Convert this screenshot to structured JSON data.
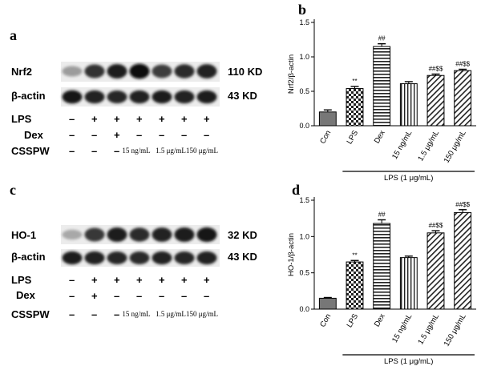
{
  "panels": {
    "a": {
      "letter": "a",
      "bands": [
        {
          "name": "Nrf2",
          "size": "110 KD",
          "intensity": [
            0.35,
            0.82,
            0.92,
            1.0,
            0.78,
            0.85,
            0.9
          ]
        },
        {
          "name": "β-actin",
          "size": "43 KD",
          "intensity": [
            0.95,
            0.9,
            0.88,
            0.9,
            0.92,
            0.9,
            0.92
          ]
        }
      ],
      "conditions": [
        {
          "label": "LPS",
          "marks": [
            "–",
            "+",
            "+",
            "+",
            "+",
            "+",
            "+"
          ]
        },
        {
          "label": "Dex",
          "marks": [
            "–",
            "–",
            "+",
            "–",
            "–",
            "–",
            "–"
          ]
        }
      ],
      "csspw": {
        "label": "CSSPW",
        "marks": [
          "–",
          "–",
          "–"
        ],
        "doses": [
          "15 ng/mL",
          "1.5 μg/mL",
          "150 μg/mL"
        ]
      }
    },
    "c": {
      "letter": "c",
      "bands": [
        {
          "name": "HO-1",
          "size": "32 KD",
          "intensity": [
            0.3,
            0.8,
            0.92,
            0.85,
            0.9,
            0.92,
            0.95
          ]
        },
        {
          "name": "β-actin",
          "size": "43 KD",
          "intensity": [
            0.92,
            0.9,
            0.88,
            0.86,
            0.9,
            0.88,
            0.9
          ]
        }
      ],
      "conditions": [
        {
          "label": "LPS",
          "marks": [
            "–",
            "+",
            "+",
            "+",
            "+",
            "+",
            "+"
          ]
        },
        {
          "label": "Dex",
          "marks": [
            "–",
            "+",
            "–",
            "–",
            "–",
            "–",
            "–"
          ]
        }
      ],
      "csspw": {
        "label": "CSSPW",
        "marks": [
          "–",
          "–",
          "–"
        ],
        "doses": [
          "15 ng/mL",
          "1.5 μg/mL",
          "150 μg/mL"
        ]
      }
    },
    "b": {
      "letter": "b"
    },
    "d": {
      "letter": "d"
    }
  },
  "chart_data": [
    {
      "type": "bar",
      "panel": "b",
      "ylabel": "Nrf2/β-actin",
      "ylim": [
        0,
        1.5
      ],
      "yticks": [
        "0.0",
        "0.5",
        "1.0",
        "1.5"
      ],
      "categories": [
        "Con",
        "LPS",
        "Dex",
        "15 ng/mL",
        "1.5 μg/mL",
        "150 μg/mL"
      ],
      "values": [
        0.2,
        0.54,
        1.15,
        0.61,
        0.73,
        0.8
      ],
      "errors": [
        0.03,
        0.03,
        0.04,
        0.03,
        0.02,
        0.02
      ],
      "annotations": [
        "",
        "**",
        "##",
        "",
        "##$$",
        "##$$"
      ],
      "patterns": [
        "solid",
        "checker",
        "hstripe",
        "vstripe",
        "diag",
        "diag"
      ],
      "group_label": "LPS (1 μg/mL)"
    },
    {
      "type": "bar",
      "panel": "d",
      "ylabel": "HO-1/β-actin",
      "ylim": [
        0,
        1.5
      ],
      "yticks": [
        "0.0",
        "0.5",
        "1.0",
        "1.5"
      ],
      "categories": [
        "Con",
        "LPS",
        "Dex",
        "15 ng/mL",
        "1.5 μg/mL",
        "150 μg/mL"
      ],
      "values": [
        0.15,
        0.65,
        1.18,
        0.71,
        1.05,
        1.33
      ],
      "errors": [
        0.01,
        0.02,
        0.05,
        0.02,
        0.03,
        0.04
      ],
      "annotations": [
        "",
        "**",
        "##",
        "",
        "##$$",
        "##$$"
      ],
      "patterns": [
        "solid",
        "checker",
        "hstripe",
        "vstripe",
        "diag",
        "diag"
      ],
      "group_label": "LPS (1 μg/mL)"
    }
  ]
}
